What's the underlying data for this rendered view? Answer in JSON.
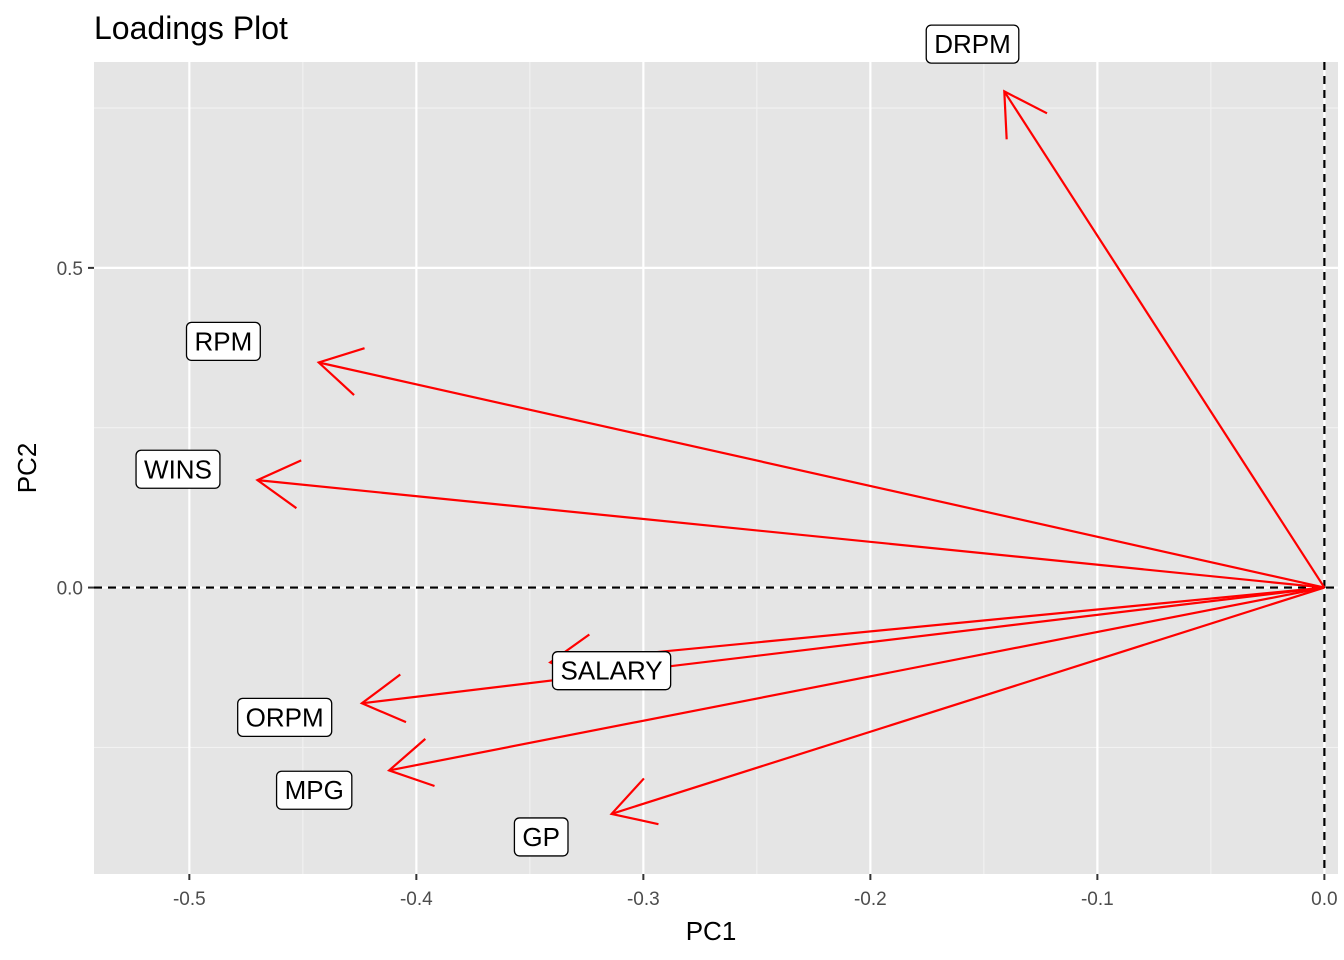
{
  "chart_data": {
    "type": "scatter",
    "subtype": "loadings-biplot",
    "title": "Loadings Plot",
    "xlabel": "PC1",
    "ylabel": "PC2",
    "xlim": [
      -0.542,
      0.006
    ],
    "ylim": [
      -0.448,
      0.822
    ],
    "x_ticks": [
      -0.5,
      -0.4,
      -0.3,
      -0.2,
      -0.1,
      0.0
    ],
    "x_tick_labels": [
      "-0.5",
      "-0.4",
      "-0.3",
      "-0.2",
      "-0.1",
      "0.0"
    ],
    "y_ticks": [
      0.0,
      0.5
    ],
    "y_tick_labels": [
      "0.0",
      "0.5"
    ],
    "grid": true,
    "reference_lines": {
      "x": 0,
      "y": 0,
      "style": "dashed"
    },
    "arrow_color": "#ff0000",
    "loadings": [
      {
        "name": "DRPM",
        "x": -0.141,
        "y": 0.776,
        "label_x": -0.155,
        "label_y": 0.85
      },
      {
        "name": "RPM",
        "x": -0.443,
        "y": 0.352,
        "label_x": -0.485,
        "label_y": 0.385
      },
      {
        "name": "WINS",
        "x": -0.47,
        "y": 0.168,
        "label_x": -0.505,
        "label_y": 0.185
      },
      {
        "name": "SALARY",
        "x": -0.341,
        "y": -0.117,
        "label_x": -0.314,
        "label_y": -0.13
      },
      {
        "name": "ORPM",
        "x": -0.424,
        "y": -0.181,
        "label_x": -0.458,
        "label_y": -0.203
      },
      {
        "name": "MPG",
        "x": -0.412,
        "y": -0.286,
        "label_x": -0.445,
        "label_y": -0.317
      },
      {
        "name": "GP",
        "x": -0.314,
        "y": -0.354,
        "label_x": -0.345,
        "label_y": -0.39
      }
    ]
  }
}
